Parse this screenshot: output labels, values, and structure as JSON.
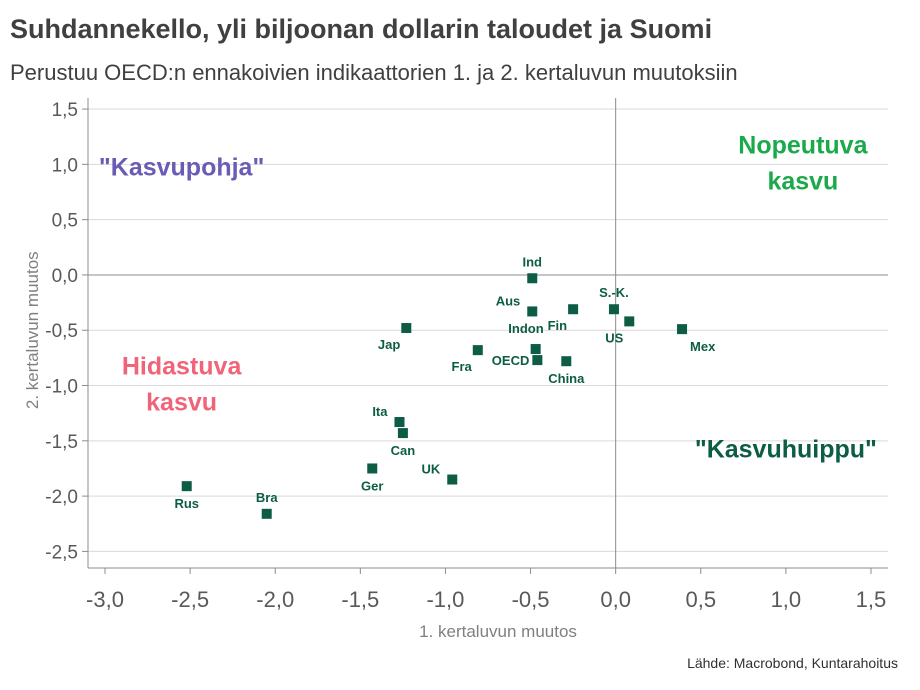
{
  "title": "Suhdannekello, yli biljoonan dollarin taloudet ja Suomi",
  "subtitle": "Perustuu OECD:n ennakoivien indikaattorien 1. ja 2. kertaluvun muutoksiin",
  "source": "Lähde: Macrobond, Kuntarahoitus",
  "colors": {
    "marker": "#0d5c45",
    "kasvupohja": "#6b5bb5",
    "nopeutuva": "#1aaa4b",
    "hidastuva": "#f0647a",
    "kasvuhuippu": "#0d5c45"
  },
  "chart_data": {
    "type": "scatter",
    "xlabel": "1. kertaluvun muutos",
    "ylabel": "2. kertaluvun muutos",
    "xlim": [
      -3.1,
      1.6
    ],
    "ylim": [
      -2.65,
      1.6
    ],
    "x_ticks": [
      -3.0,
      -2.5,
      -2.0,
      -1.5,
      -1.0,
      -0.5,
      0.0,
      0.5,
      1.0,
      1.5
    ],
    "x_tick_labels": [
      "-3,0",
      "-2,5",
      "-2,0",
      "-1,5",
      "-1,0",
      "-0,5",
      "0,0",
      "0,5",
      "1,0",
      "1,5"
    ],
    "y_ticks": [
      1.5,
      1.0,
      0.5,
      0.0,
      -0.5,
      -1.0,
      -1.5,
      -2.0,
      -2.5
    ],
    "y_tick_labels": [
      "1,5",
      "1,0",
      "0,5",
      "0,0",
      "-0,5",
      "-1,0",
      "-1,5",
      "-2,0",
      "-2,5"
    ],
    "grid": "horizontal",
    "points": [
      {
        "label": "Ind",
        "x": -0.49,
        "y": -0.03,
        "anchor": "above"
      },
      {
        "label": "Aus",
        "x": -0.49,
        "y": -0.33,
        "anchor": "upper-left"
      },
      {
        "label": "Fin",
        "x": -0.25,
        "y": -0.31,
        "anchor": "below-left"
      },
      {
        "label": "S.-K.",
        "x": -0.01,
        "y": -0.31,
        "anchor": "above"
      },
      {
        "label": "US",
        "x": 0.08,
        "y": -0.42,
        "anchor": "below-left"
      },
      {
        "label": "Mex",
        "x": 0.39,
        "y": -0.49,
        "anchor": "below-right"
      },
      {
        "label": "Indon",
        "x": -0.47,
        "y": -0.67,
        "anchor": "above-left"
      },
      {
        "label": "OECD",
        "x": -0.46,
        "y": -0.77,
        "anchor": "left"
      },
      {
        "label": "China",
        "x": -0.29,
        "y": -0.78,
        "anchor": "below"
      },
      {
        "label": "Jap",
        "x": -1.23,
        "y": -0.48,
        "anchor": "below-left"
      },
      {
        "label": "Fra",
        "x": -0.81,
        "y": -0.68,
        "anchor": "below-left"
      },
      {
        "label": "Ita",
        "x": -1.27,
        "y": -1.33,
        "anchor": "upper-left"
      },
      {
        "label": "Can",
        "x": -1.25,
        "y": -1.43,
        "anchor": "below"
      },
      {
        "label": "UK",
        "x": -0.96,
        "y": -1.85,
        "anchor": "upper-left"
      },
      {
        "label": "Ger",
        "x": -1.43,
        "y": -1.75,
        "anchor": "below"
      },
      {
        "label": "Rus",
        "x": -2.52,
        "y": -1.91,
        "anchor": "below"
      },
      {
        "label": "Bra",
        "x": -2.05,
        "y": -2.16,
        "anchor": "above"
      }
    ],
    "annotations": [
      {
        "key": "kasvupohja",
        "lines": [
          "\"Kasvupohja\""
        ],
        "x": -2.55,
        "y": 0.9
      },
      {
        "key": "nopeutuva",
        "lines": [
          "Nopeutuva",
          "kasvu"
        ],
        "x": 1.1,
        "y": 1.1
      },
      {
        "key": "hidastuva",
        "lines": [
          "Hidastuva",
          "kasvu"
        ],
        "x": -2.55,
        "y": -0.9
      },
      {
        "key": "kasvuhuippu",
        "lines": [
          "\"Kasvuhuippu\""
        ],
        "x": 1.0,
        "y": -1.65
      }
    ]
  }
}
